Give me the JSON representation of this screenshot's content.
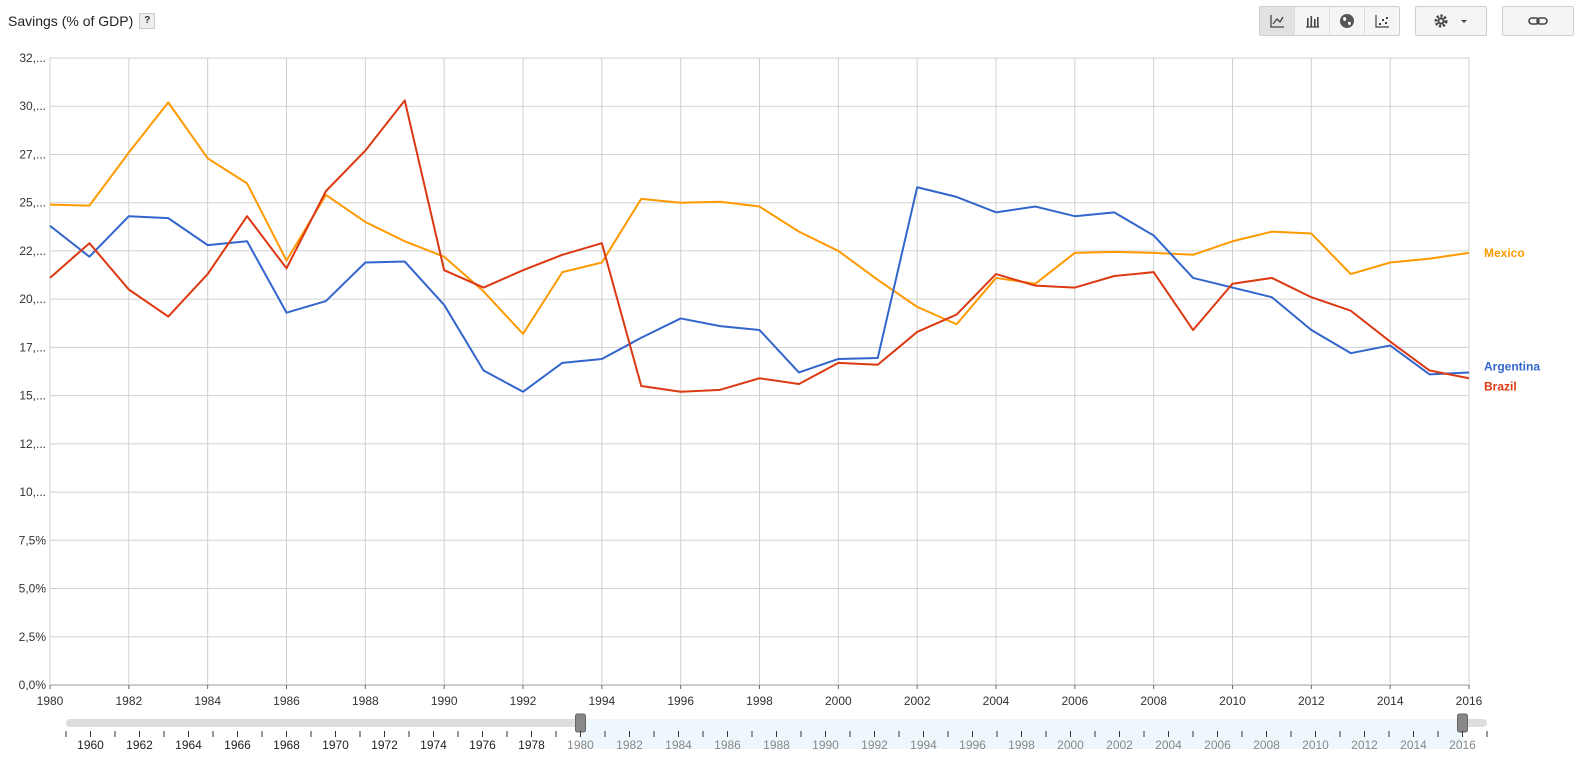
{
  "header": {
    "title": "Savings (% of GDP)",
    "help_label": "?"
  },
  "toolbar": {
    "views": [
      {
        "name": "line-chart-view",
        "icon": "line-chart-icon",
        "active": true
      },
      {
        "name": "bar-chart-view",
        "icon": "bar-chart-icon",
        "active": false
      },
      {
        "name": "map-view",
        "icon": "globe-icon",
        "active": false
      },
      {
        "name": "scatter-view",
        "icon": "scatter-chart-icon",
        "active": false
      }
    ],
    "settings_icon": "gear-icon",
    "link_icon": "link-icon"
  },
  "chart_data": {
    "type": "line",
    "title": "Savings (% of GDP)",
    "x": [
      1980,
      1981,
      1982,
      1983,
      1984,
      1985,
      1986,
      1987,
      1988,
      1989,
      1990,
      1991,
      1992,
      1993,
      1994,
      1995,
      1996,
      1997,
      1998,
      1999,
      2000,
      2001,
      2002,
      2003,
      2004,
      2005,
      2006,
      2007,
      2008,
      2009,
      2010,
      2011,
      2012,
      2013,
      2014,
      2015,
      2016
    ],
    "xlim": [
      1980,
      2016
    ],
    "ylim": [
      0,
      32.5
    ],
    "x_tick_labels": [
      "1980",
      "1982",
      "1984",
      "1986",
      "1988",
      "1990",
      "1992",
      "1994",
      "1996",
      "1998",
      "2000",
      "2002",
      "2004",
      "2006",
      "2008",
      "2010",
      "2012",
      "2014",
      "2016"
    ],
    "y_tick_labels": [
      "0,0%",
      "2,5%",
      "5,0%",
      "7,5%",
      "10,...",
      "12,...",
      "15,...",
      "17,...",
      "20,...",
      "22,...",
      "25,...",
      "27,...",
      "30,...",
      "32,..."
    ],
    "grid": true,
    "legend": "right, labels at line ends",
    "series": [
      {
        "name": "Mexico",
        "color": "#ff9900",
        "values": [
          24.9,
          24.85,
          27.6,
          30.2,
          27.3,
          26.0,
          22.0,
          25.4,
          24.0,
          23.0,
          22.2,
          20.4,
          18.2,
          21.4,
          21.9,
          25.2,
          25.0,
          25.05,
          24.8,
          23.5,
          22.5,
          21.0,
          19.6,
          18.7,
          21.1,
          20.8,
          22.4,
          22.45,
          22.4,
          22.3,
          23.0,
          23.5,
          23.4,
          21.3,
          21.9,
          22.1,
          22.4
        ]
      },
      {
        "name": "Argentina",
        "color": "#3366cc",
        "values": [
          23.8,
          22.2,
          24.3,
          24.2,
          22.8,
          23.0,
          19.3,
          19.9,
          21.9,
          21.95,
          19.7,
          16.3,
          15.2,
          16.7,
          16.9,
          18.0,
          19.0,
          18.6,
          18.4,
          16.2,
          16.9,
          16.95,
          25.8,
          25.3,
          24.5,
          24.8,
          24.3,
          24.5,
          23.3,
          21.1,
          20.6,
          20.1,
          18.4,
          17.2,
          17.6,
          16.1,
          16.2
        ]
      },
      {
        "name": "Brazil",
        "color": "#dc3912",
        "values": [
          21.1,
          22.9,
          20.5,
          19.1,
          21.3,
          24.3,
          21.6,
          25.6,
          27.7,
          30.3,
          21.5,
          20.6,
          21.5,
          22.3,
          22.9,
          15.5,
          15.2,
          15.3,
          15.9,
          15.6,
          16.7,
          16.6,
          18.3,
          19.2,
          21.3,
          20.7,
          20.6,
          21.2,
          21.4,
          18.4,
          20.8,
          21.1,
          20.1,
          19.4,
          17.8,
          16.3,
          15.9
        ]
      }
    ]
  },
  "timeline": {
    "x_tick_labels": [
      "1960",
      "1962",
      "1964",
      "1966",
      "1968",
      "1970",
      "1972",
      "1974",
      "1976",
      "1978",
      "1980",
      "1982",
      "1984",
      "1986",
      "1988",
      "1990",
      "1992",
      "1994",
      "1996",
      "1998",
      "2000",
      "2002",
      "2004",
      "2006",
      "2008",
      "2010",
      "2012",
      "2014",
      "2016"
    ],
    "range_min": 1959,
    "range_max": 2017,
    "selected_start": 1980,
    "selected_end": 2016
  }
}
